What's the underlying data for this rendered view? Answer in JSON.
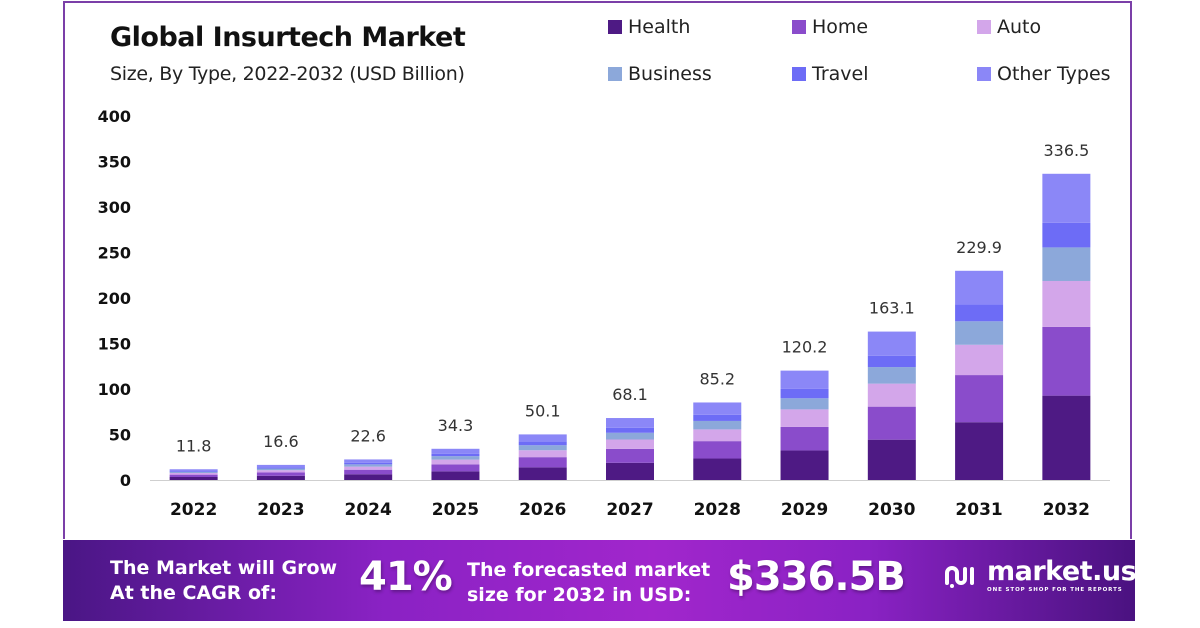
{
  "header": {
    "title": "Global Insurtech Market",
    "subtitle": "Size, By Type, 2022-2032 (USD Billion)"
  },
  "legend": [
    {
      "label": "Health",
      "color": "#4e1a84"
    },
    {
      "label": "Home",
      "color": "#8a4ccb"
    },
    {
      "label": "Auto",
      "color": "#d3a6ea"
    },
    {
      "label": "Business",
      "color": "#8ca8da"
    },
    {
      "label": "Travel",
      "color": "#6d6cf6"
    },
    {
      "label": "Other Types",
      "color": "#8b87f7"
    }
  ],
  "banner": {
    "cagr_text_line1": "The Market will Grow",
    "cagr_text_line2": "At the CAGR of:",
    "cagr_value": "41%",
    "forecast_text_line1": "The forecasted market",
    "forecast_text_line2": "size for 2032 in USD:",
    "forecast_value": "$336.5B",
    "brand_name": "market.us",
    "brand_tagline": "ONE STOP SHOP FOR THE REPORTS",
    "colors": {
      "start": "#4a1685",
      "mid": "#a126cc",
      "end": "#4a1280"
    }
  },
  "chart_data": {
    "type": "bar",
    "stacked": true,
    "title": "Global Insurtech Market",
    "subtitle": "Size, By Type, 2022-2032 (USD Billion)",
    "xlabel": "",
    "ylabel": "",
    "ylim": [
      0,
      400
    ],
    "yticks": [
      0,
      50,
      100,
      150,
      200,
      250,
      300,
      350,
      400
    ],
    "grid": false,
    "legend_position": "top-right",
    "categories": [
      "2022",
      "2023",
      "2024",
      "2025",
      "2026",
      "2027",
      "2028",
      "2029",
      "2030",
      "2031",
      "2032"
    ],
    "totals": [
      11.8,
      16.6,
      22.6,
      34.3,
      50.1,
      68.1,
      85.2,
      120.2,
      163.1,
      229.9,
      336.5
    ],
    "total_labels": [
      "11.8",
      "16.6",
      "22.6",
      "34.3",
      "50.1",
      "68.1",
      "85.2",
      "120.2",
      "163.1",
      "229.9",
      "336.5"
    ],
    "series": [
      {
        "name": "Health",
        "color": "#4e1a84",
        "values": [
          3.3,
          4.6,
          6.3,
          9.5,
          13.9,
          18.9,
          23.6,
          32.5,
          44.3,
          63.5,
          92.7
        ]
      },
      {
        "name": "Home",
        "color": "#8a4ccb",
        "values": [
          2.6,
          3.7,
          5.0,
          7.7,
          11.2,
          15.3,
          19.1,
          25.8,
          36.3,
          51.8,
          75.6
        ]
      },
      {
        "name": "Auto",
        "color": "#d3a6ea",
        "values": [
          1.8,
          2.5,
          3.4,
          5.2,
          7.6,
          10.3,
          12.9,
          19.3,
          25.3,
          33.3,
          50.4
        ]
      },
      {
        "name": "Business",
        "color": "#8ca8da",
        "values": [
          1.3,
          1.8,
          2.5,
          3.8,
          5.5,
          7.4,
          9.3,
          12.2,
          18.2,
          25.8,
          36.9
        ]
      },
      {
        "name": "Travel",
        "color": "#6d6cf6",
        "values": [
          0.9,
          1.3,
          1.8,
          2.7,
          4.0,
          5.4,
          6.8,
          10.3,
          12.3,
          18.6,
          27.0
        ]
      },
      {
        "name": "Other Types",
        "color": "#8b87f7",
        "values": [
          1.9,
          2.7,
          3.6,
          5.4,
          7.9,
          10.8,
          13.5,
          20.1,
          26.7,
          36.9,
          53.9
        ]
      }
    ]
  }
}
